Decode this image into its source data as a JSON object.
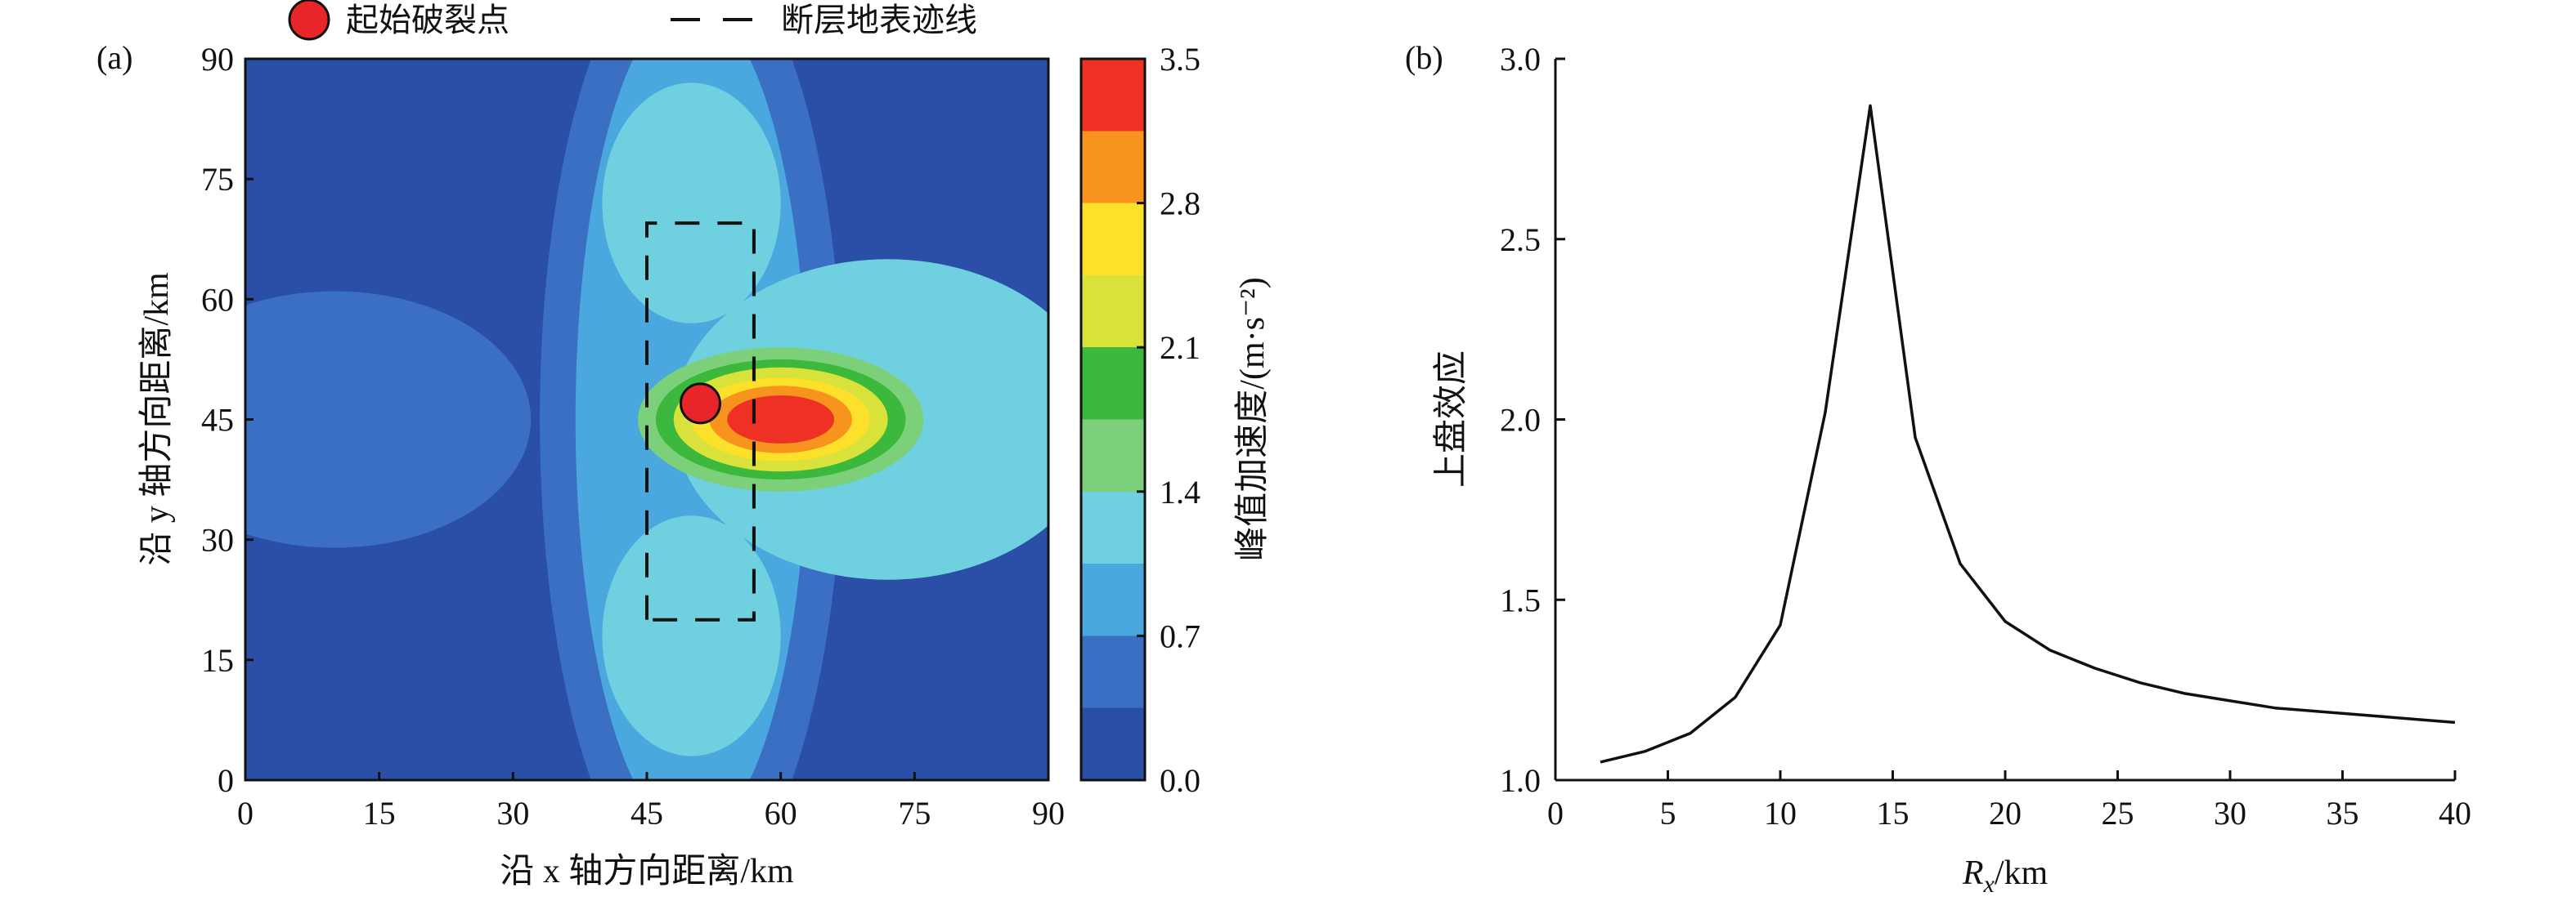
{
  "legend": {
    "items": [
      {
        "label": "起始破裂点",
        "symbol": "red-circle",
        "color": "#e8262a"
      },
      {
        "label": "断层地表迹线",
        "symbol": "dashed-line",
        "color": "#111111"
      }
    ]
  },
  "chart_data": [
    {
      "panel_label": "(a)",
      "type": "heatmap",
      "xlabel": "沿 x 轴方向距离/km",
      "ylabel": "沿 y 轴方向距离/km",
      "xlim": [
        0,
        90
      ],
      "ylim": [
        0,
        90
      ],
      "xticks": [
        0,
        15,
        30,
        45,
        60,
        75,
        90
      ],
      "yticks": [
        0,
        15,
        30,
        45,
        60,
        75,
        90
      ],
      "colorbar": {
        "label": "峰值加速度/(m·s⁻²)",
        "range": [
          0.0,
          3.5
        ],
        "ticks": [
          "0.0",
          "0.7",
          "1.4",
          "2.1",
          "2.8",
          "3.5"
        ],
        "tick_values": [
          0.0,
          0.7,
          1.4,
          2.1,
          2.8,
          3.5
        ],
        "colors": [
          "#2b4fa6",
          "#3a6fc4",
          "#4aa8df",
          "#6fd0e0",
          "#7dd07a",
          "#3cb83c",
          "#d8e23a",
          "#fde02a",
          "#f7941d",
          "#ee3124"
        ]
      },
      "rupture_start": {
        "x": 51,
        "y": 47
      },
      "fault_trace": {
        "x": [
          45,
          57
        ],
        "y": [
          20,
          69.5
        ]
      },
      "field_features": [
        {
          "x": 60,
          "y": 45,
          "value": 3.5
        },
        {
          "x": 10,
          "y": 45,
          "value": 0.65
        },
        {
          "x": 50,
          "y": 75,
          "value": 1.0
        },
        {
          "x": 50,
          "y": 15,
          "value": 1.0
        }
      ]
    },
    {
      "panel_label": "(b)",
      "type": "line",
      "xlabel": "R",
      "xlabel_sub": "x",
      "xlabel_unit": "/km",
      "ylabel": "上盘效应",
      "xlim": [
        0,
        40
      ],
      "ylim": [
        1.0,
        3.0
      ],
      "xticks": [
        0,
        5,
        10,
        15,
        20,
        25,
        30,
        35,
        40
      ],
      "yticks": [
        "1.0",
        "1.5",
        "2.0",
        "2.5",
        "3.0"
      ],
      "ytick_values": [
        1.0,
        1.5,
        2.0,
        2.5,
        3.0
      ],
      "series": [
        {
          "x": [
            2,
            4,
            6,
            8,
            10,
            12,
            14,
            16,
            18,
            20,
            22,
            24,
            26,
            28,
            30,
            32,
            34,
            36,
            38,
            40
          ],
          "values": [
            1.05,
            1.08,
            1.13,
            1.23,
            1.43,
            2.02,
            2.87,
            1.95,
            1.6,
            1.44,
            1.36,
            1.31,
            1.27,
            1.24,
            1.22,
            1.2,
            1.19,
            1.18,
            1.17,
            1.16
          ]
        }
      ]
    }
  ]
}
